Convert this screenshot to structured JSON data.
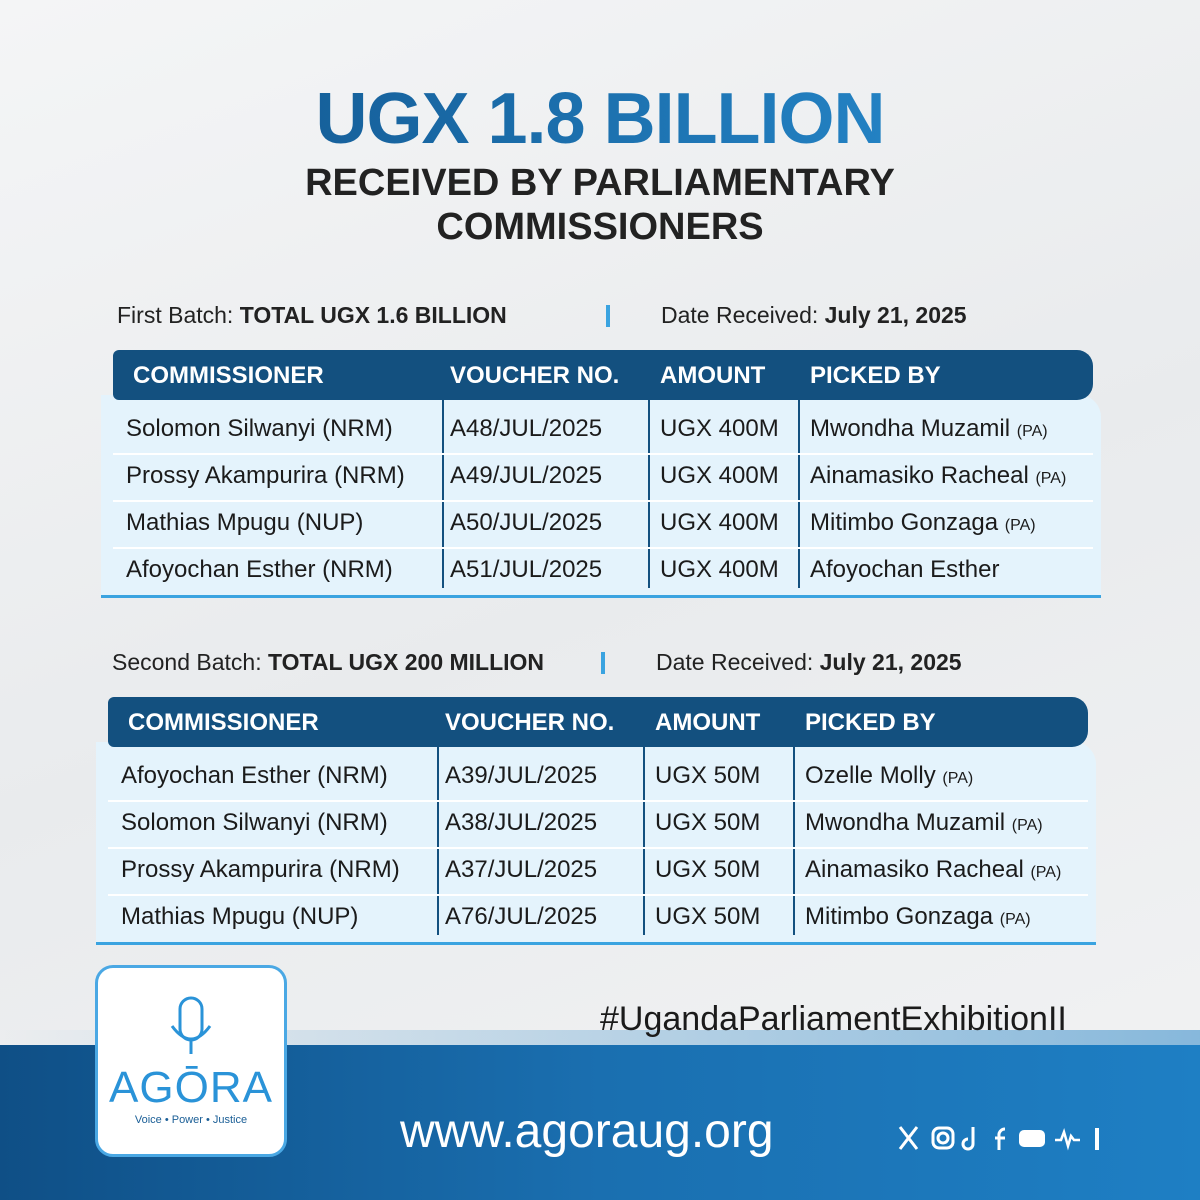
{
  "header": {
    "title": "UGX 1.8 BILLION",
    "subtitle_lines": [
      "RECEIVED BY PARLIAMENTARY",
      "COMMISSIONERS"
    ]
  },
  "batches": [
    {
      "label": "First Batch:",
      "total": "TOTAL UGX 1.6 BILLION",
      "date_label": "Date Received:",
      "date": "July 21, 2025",
      "columns": [
        "COMMISSIONER",
        "VOUCHER NO.",
        "AMOUNT",
        "PICKED BY"
      ],
      "rows": [
        {
          "commissioner": "Solomon Silwanyi (NRM)",
          "voucher": "A48/JUL/2025",
          "amount": "UGX 400M",
          "picked_by": "Mwondha Muzamil",
          "role": "(PA)"
        },
        {
          "commissioner": "Prossy Akampurira (NRM)",
          "voucher": "A49/JUL/2025",
          "amount": "UGX 400M",
          "picked_by": "Ainamasiko Racheal",
          "role": "(PA)"
        },
        {
          "commissioner": "Mathias Mpugu (NUP)",
          "voucher": "A50/JUL/2025",
          "amount": "UGX 400M",
          "picked_by": "Mitimbo Gonzaga",
          "role": "(PA)"
        },
        {
          "commissioner": "Afoyochan Esther (NRM)",
          "voucher": "A51/JUL/2025",
          "amount": "UGX 400M",
          "picked_by": "Afoyochan Esther"
        }
      ]
    },
    {
      "label": "Second Batch:",
      "total": "TOTAL UGX 200 MILLION",
      "date_label": "Date Received:",
      "date": "July 21, 2025",
      "columns": [
        "COMMISSIONER",
        "VOUCHER NO.",
        "AMOUNT",
        "PICKED BY"
      ],
      "rows": [
        {
          "commissioner": "Afoyochan Esther (NRM)",
          "voucher": "A39/JUL/2025",
          "amount": "UGX 50M",
          "picked_by": "Ozelle Molly",
          "role": "(PA)"
        },
        {
          "commissioner": "Solomon Silwanyi (NRM)",
          "voucher": "A38/JUL/2025",
          "amount": "UGX 50M",
          "picked_by": "Mwondha Muzamil",
          "role": "(PA)"
        },
        {
          "commissioner": "Prossy Akampurira (NRM)",
          "voucher": "A37/JUL/2025",
          "amount": "UGX 50M",
          "picked_by": "Ainamasiko Racheal",
          "role": "(PA)"
        },
        {
          "commissioner": "Mathias Mpugu (NUP)",
          "voucher": "A76/JUL/2025",
          "amount": "UGX 50M",
          "picked_by": "Mitimbo Gonzaga",
          "role": "(PA)"
        }
      ]
    }
  ],
  "logo": {
    "name": "AGŌRA",
    "tagline": "Voice • Power • Justice"
  },
  "footer": {
    "hashtag": "#UgandaParliamentExhibitionII",
    "website": "www.agoraug.org"
  }
}
